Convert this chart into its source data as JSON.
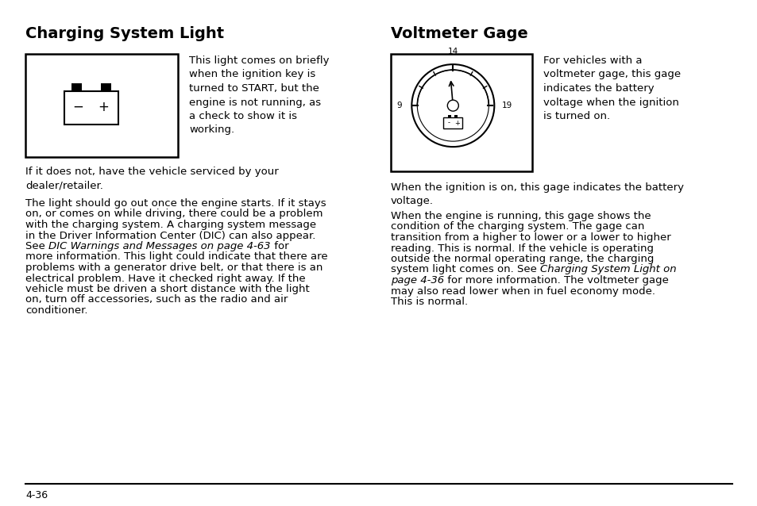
{
  "bg_color": "#ffffff",
  "font_color": "#000000",
  "left_title": "Charging System Light",
  "right_title": "Voltmeter Gage",
  "left_text1": "This light comes on briefly\nwhen the ignition key is\nturned to START, but the\nengine is not running, as\na check to show it is\nworking.",
  "left_text2": "If it does not, have the vehicle serviced by your\ndealer/retailer.",
  "left_text3_parts": [
    {
      "text": "The light should go out once the engine starts. If it stays",
      "italic": false
    },
    {
      "text": "on, or comes on while driving, there could be a problem",
      "italic": false
    },
    {
      "text": "with the charging system. A charging system message",
      "italic": false
    },
    {
      "text": "in the Driver Information Center (DIC) can also appear.",
      "italic": false
    },
    {
      "text": "See ",
      "italic": false,
      "continues": true
    },
    {
      "text": "DIC Warnings and Messages on page 4-63",
      "italic": true,
      "continues": true
    },
    {
      "text": " for",
      "italic": false
    },
    {
      "text": "more information. This light could indicate that there are",
      "italic": false
    },
    {
      "text": "problems with a generator drive belt, or that there is an",
      "italic": false
    },
    {
      "text": "electrical problem. Have it checked right away. If the",
      "italic": false
    },
    {
      "text": "vehicle must be driven a short distance with the light",
      "italic": false
    },
    {
      "text": "on, turn off accessories, such as the radio and air",
      "italic": false
    },
    {
      "text": "conditioner.",
      "italic": false
    }
  ],
  "right_text1": "For vehicles with a\nvoltmeter gage, this gage\nindicates the battery\nvoltage when the ignition\nis turned on.",
  "right_text2": "When the ignition is on, this gage indicates the battery\nvoltage.",
  "right_text3_parts": [
    {
      "text": "When the engine is running, this gage shows the",
      "italic": false
    },
    {
      "text": "condition of the charging system. The gage can",
      "italic": false
    },
    {
      "text": "transition from a higher to lower or a lower to higher",
      "italic": false
    },
    {
      "text": "reading. This is normal. If the vehicle is operating",
      "italic": false
    },
    {
      "text": "outside the normal operating range, the charging",
      "italic": false
    },
    {
      "text": "system light comes on. See ",
      "italic": false,
      "continues": true
    },
    {
      "text": "Charging System Light on",
      "italic": true
    },
    {
      "text": "page 4-36",
      "italic": true,
      "continues": true
    },
    {
      "text": " for more information. The voltmeter gage",
      "italic": false
    },
    {
      "text": "may also read lower when in fuel economy mode.",
      "italic": false
    },
    {
      "text": "This is normal.",
      "italic": false
    }
  ],
  "page_number": "4-36",
  "title_fontsize": 14,
  "body_fontsize": 9.5
}
